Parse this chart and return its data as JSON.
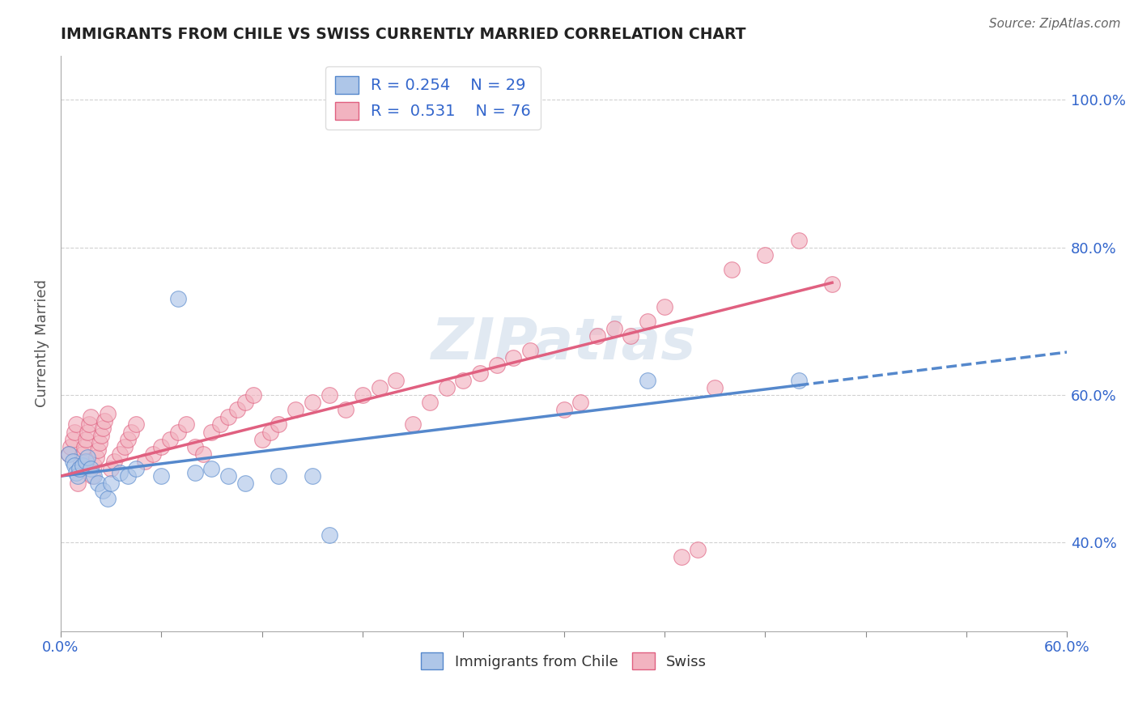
{
  "title": "IMMIGRANTS FROM CHILE VS SWISS CURRENTLY MARRIED CORRELATION CHART",
  "source": "Source: ZipAtlas.com",
  "ylabel": "Currently Married",
  "xlim": [
    0.0,
    0.6
  ],
  "ylim": [
    0.28,
    1.06
  ],
  "xticks": [
    0.0,
    0.06,
    0.12,
    0.18,
    0.24,
    0.3,
    0.36,
    0.42,
    0.48,
    0.54,
    0.6
  ],
  "ytick_positions": [
    0.4,
    0.6,
    0.8,
    1.0
  ],
  "legend1_R": "0.254",
  "legend1_N": "29",
  "legend2_R": "0.531",
  "legend2_N": "76",
  "color_chile": "#aec6e8",
  "color_swiss": "#f2b3c0",
  "trendline_chile_color": "#5588cc",
  "trendline_swiss_color": "#e06080",
  "watermark": "ZIPatlas",
  "chile_points_x": [
    0.005,
    0.007,
    0.008,
    0.009,
    0.01,
    0.011,
    0.013,
    0.015,
    0.016,
    0.018,
    0.02,
    0.022,
    0.025,
    0.028,
    0.03,
    0.035,
    0.04,
    0.045,
    0.06,
    0.07,
    0.08,
    0.09,
    0.1,
    0.11,
    0.13,
    0.15,
    0.16,
    0.35,
    0.44
  ],
  "chile_points_y": [
    0.52,
    0.51,
    0.505,
    0.495,
    0.49,
    0.5,
    0.505,
    0.51,
    0.515,
    0.5,
    0.49,
    0.48,
    0.47,
    0.46,
    0.48,
    0.495,
    0.49,
    0.5,
    0.49,
    0.73,
    0.495,
    0.5,
    0.49,
    0.48,
    0.49,
    0.49,
    0.41,
    0.62,
    0.62
  ],
  "swiss_points_x": [
    0.005,
    0.006,
    0.007,
    0.008,
    0.009,
    0.01,
    0.011,
    0.012,
    0.013,
    0.014,
    0.015,
    0.016,
    0.017,
    0.018,
    0.019,
    0.02,
    0.021,
    0.022,
    0.023,
    0.024,
    0.025,
    0.026,
    0.028,
    0.03,
    0.032,
    0.035,
    0.038,
    0.04,
    0.042,
    0.045,
    0.05,
    0.055,
    0.06,
    0.065,
    0.07,
    0.075,
    0.08,
    0.085,
    0.09,
    0.095,
    0.1,
    0.105,
    0.11,
    0.115,
    0.12,
    0.125,
    0.13,
    0.14,
    0.15,
    0.16,
    0.17,
    0.18,
    0.19,
    0.2,
    0.21,
    0.22,
    0.23,
    0.24,
    0.25,
    0.26,
    0.27,
    0.28,
    0.3,
    0.31,
    0.32,
    0.33,
    0.34,
    0.35,
    0.36,
    0.37,
    0.38,
    0.39,
    0.4,
    0.42,
    0.44,
    0.46
  ],
  "swiss_points_y": [
    0.52,
    0.53,
    0.54,
    0.55,
    0.56,
    0.48,
    0.5,
    0.51,
    0.52,
    0.53,
    0.54,
    0.55,
    0.56,
    0.57,
    0.49,
    0.505,
    0.515,
    0.525,
    0.535,
    0.545,
    0.555,
    0.565,
    0.575,
    0.5,
    0.51,
    0.52,
    0.53,
    0.54,
    0.55,
    0.56,
    0.51,
    0.52,
    0.53,
    0.54,
    0.55,
    0.56,
    0.53,
    0.52,
    0.55,
    0.56,
    0.57,
    0.58,
    0.59,
    0.6,
    0.54,
    0.55,
    0.56,
    0.58,
    0.59,
    0.6,
    0.58,
    0.6,
    0.61,
    0.62,
    0.56,
    0.59,
    0.61,
    0.62,
    0.63,
    0.64,
    0.65,
    0.66,
    0.58,
    0.59,
    0.68,
    0.69,
    0.68,
    0.7,
    0.72,
    0.38,
    0.39,
    0.61,
    0.77,
    0.79,
    0.81,
    0.75
  ]
}
